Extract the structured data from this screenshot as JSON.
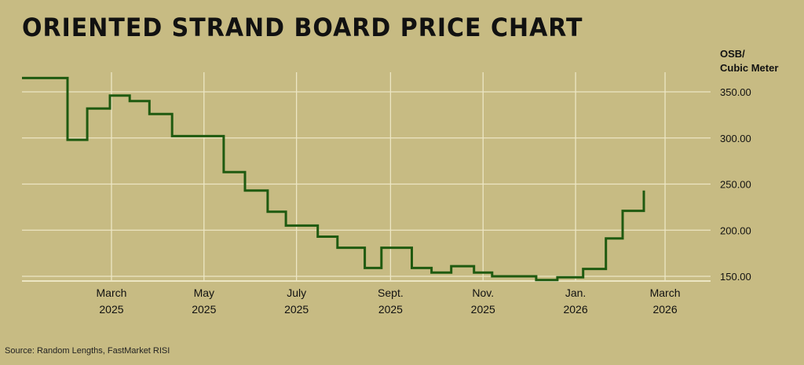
{
  "title": "ORIENTED STRAND BOARD PRICE CHART",
  "unit_label": [
    "OSB/",
    "Cubic Meter"
  ],
  "source": "Source: Random Lengths, FastMarket RISI",
  "colors": {
    "background": "#c7bb83",
    "line": "#1f5a10",
    "grid": "#ece6c4",
    "text": "#111111"
  },
  "chart_data": {
    "type": "line",
    "step": true,
    "title": "ORIENTED STRAND BOARD PRICE CHART",
    "ylabel": "OSB/ Cubic Meter",
    "xlabel": "",
    "ylim": [
      147,
      365
    ],
    "xlim": [
      "2025-01-01",
      "2026-03-31"
    ],
    "grid": true,
    "y_ticks": [
      "350.00",
      "300.00",
      "250.00",
      "200.00",
      "150.00"
    ],
    "y_tick_values": [
      350,
      300,
      250,
      200,
      150
    ],
    "x_ticks": [
      {
        "month": "2025-03-01",
        "line1": "March",
        "line2": "2025"
      },
      {
        "month": "2025-05-01",
        "line1": "May",
        "line2": "2025"
      },
      {
        "month": "2025-07-01",
        "line1": "July",
        "line2": "2025"
      },
      {
        "month": "2025-09-01",
        "line1": "Sept.",
        "line2": "2025"
      },
      {
        "month": "2025-11-01",
        "line1": "Nov.",
        "line2": "2025"
      },
      {
        "month": "2026-01-01",
        "line1": "Jan.",
        "line2": "2026"
      },
      {
        "month": "2026-03-01",
        "line1": "March",
        "line2": "2026"
      }
    ],
    "series": [
      {
        "dates": [
          "2025-01-01",
          "2025-01-31",
          "2025-02-13",
          "2025-02-28",
          "2025-03-13",
          "2025-03-26",
          "2025-04-10",
          "2025-05-01",
          "2025-05-14",
          "2025-05-28",
          "2025-06-12",
          "2025-06-24",
          "2025-07-15",
          "2025-07-28",
          "2025-08-15",
          "2025-08-26",
          "2025-09-15",
          "2025-09-28",
          "2025-10-11",
          "2025-10-26",
          "2025-11-07",
          "2025-11-28",
          "2025-12-06",
          "2025-12-20",
          "2026-01-06",
          "2026-01-21",
          "2026-02-01",
          "2026-02-15"
        ],
        "values": [
          365,
          298,
          332,
          346,
          340,
          326,
          302,
          302,
          263,
          243,
          220,
          205,
          193,
          181,
          159,
          181,
          159,
          154,
          161,
          154,
          150,
          150,
          146,
          149,
          158,
          191,
          221,
          243
        ]
      }
    ]
  }
}
